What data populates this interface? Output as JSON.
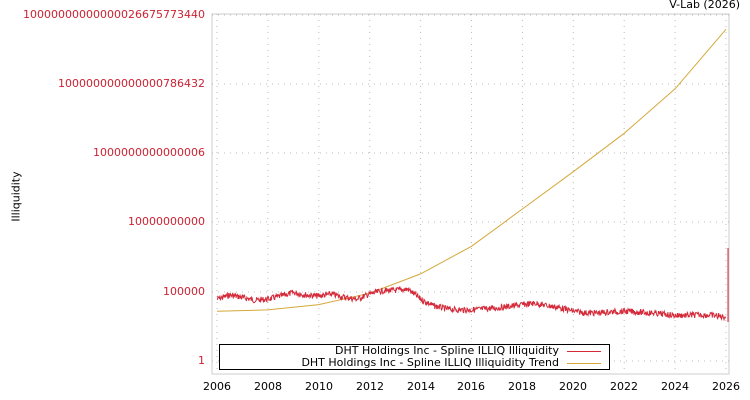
{
  "header": {
    "source_label": "V-Lab (2026)"
  },
  "colors": {
    "illiquidity": "#d42a3a",
    "trend": "#d4a83a",
    "ytick_text": "#cc2233",
    "grid": "#bbbbbb",
    "frame": "#cccccc"
  },
  "chart_data": {
    "type": "line",
    "title": "",
    "xlabel": "",
    "ylabel": "Illiquidity",
    "yscale": "log",
    "ylim": [
      1,
      1e+25
    ],
    "xlim": [
      2006,
      2026
    ],
    "y_ticks": [
      "1",
      "100000",
      "10000000000",
      "1000000000000006",
      "100000000000000786432",
      "10000000000000026675773440"
    ],
    "x_ticks": [
      "2006",
      "2008",
      "2010",
      "2012",
      "2014",
      "2016",
      "2018",
      "2020",
      "2022",
      "2024",
      "2026"
    ],
    "grid": true,
    "legend_position": "bottom",
    "series": [
      {
        "name": "DHT Holdings Inc - Spline ILLIQ Illiquidity",
        "color": "#d42a3a",
        "x": [
          2006,
          2006.5,
          2007,
          2007.5,
          2008,
          2008.5,
          2009,
          2009.5,
          2010,
          2010.5,
          2011,
          2011.5,
          2012,
          2012.5,
          2013,
          2013.5,
          2014,
          2014.5,
          2015,
          2015.5,
          2016,
          2016.5,
          2017,
          2017.5,
          2018,
          2018.5,
          2019,
          2019.5,
          2020,
          2020.5,
          2021,
          2021.5,
          2022,
          2022.5,
          2023,
          2023.5,
          2024,
          2024.5,
          2025,
          2025.5,
          2026
        ],
        "values": [
          30000,
          60000,
          40000,
          25000,
          30000,
          50000,
          90000,
          60000,
          50000,
          70000,
          40000,
          30000,
          70000,
          120000,
          130000,
          160000,
          30000,
          10000,
          6000,
          5000,
          5000,
          6000,
          7000,
          9000,
          12000,
          15000,
          10000,
          7000,
          4000,
          3000,
          3000,
          3500,
          4000,
          3500,
          3000,
          2500,
          2000,
          2000,
          2200,
          2000,
          1500
        ]
      },
      {
        "name": "DHT Holdings Inc - Spline ILLIQ Illiquidity Trend",
        "color": "#d4a83a",
        "x": [
          2006,
          2008,
          2010,
          2012,
          2014,
          2016,
          2018,
          2020,
          2022,
          2024,
          2026
        ],
        "values": [
          4000,
          5000,
          12000,
          80000,
          2000000,
          200000000,
          100000000000.0,
          50000000000000.0,
          3e+16,
          5e+19,
          1e+24
        ]
      }
    ]
  },
  "legend": {
    "items": [
      {
        "label": "DHT Holdings Inc - Spline ILLIQ Illiquidity"
      },
      {
        "label": "DHT Holdings Inc - Spline ILLIQ Illiquidity Trend"
      }
    ]
  }
}
